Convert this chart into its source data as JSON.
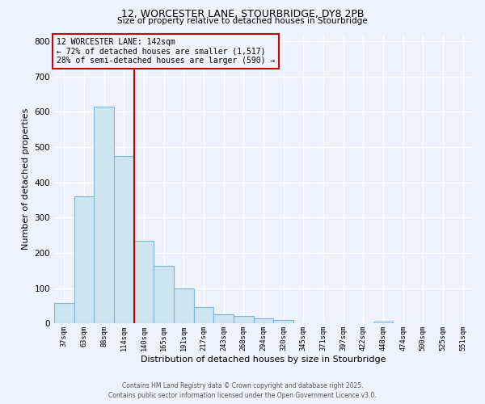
{
  "title_line1": "12, WORCESTER LANE, STOURBRIDGE, DY8 2PB",
  "title_line2": "Size of property relative to detached houses in Stourbridge",
  "xlabel": "Distribution of detached houses by size in Stourbridge",
  "ylabel": "Number of detached properties",
  "bar_labels": [
    "37sqm",
    "63sqm",
    "88sqm",
    "114sqm",
    "140sqm",
    "165sqm",
    "191sqm",
    "217sqm",
    "243sqm",
    "268sqm",
    "294sqm",
    "320sqm",
    "345sqm",
    "371sqm",
    "397sqm",
    "422sqm",
    "448sqm",
    "474sqm",
    "500sqm",
    "525sqm",
    "551sqm"
  ],
  "bar_values": [
    58,
    360,
    615,
    475,
    235,
    163,
    98,
    46,
    25,
    20,
    15,
    10,
    0,
    0,
    0,
    0,
    5,
    0,
    0,
    0,
    0
  ],
  "bar_color": "#cce5f0",
  "bar_edge_color": "#7ab8d4",
  "vline_index": 4,
  "vline_color": "#cc0000",
  "box_label": "12 WORCESTER LANE: 142sqm",
  "annotation_line1": "← 72% of detached houses are smaller (1,517)",
  "annotation_line2": "28% of semi-detached houses are larger (590) →",
  "ylim": [
    0,
    820
  ],
  "yticks": [
    0,
    100,
    200,
    300,
    400,
    500,
    600,
    700,
    800
  ],
  "bg_color": "#eef2fa",
  "grid_color": "#ffffff",
  "footer_line1": "Contains HM Land Registry data © Crown copyright and database right 2025.",
  "footer_line2": "Contains public sector information licensed under the Open Government Licence v3.0."
}
